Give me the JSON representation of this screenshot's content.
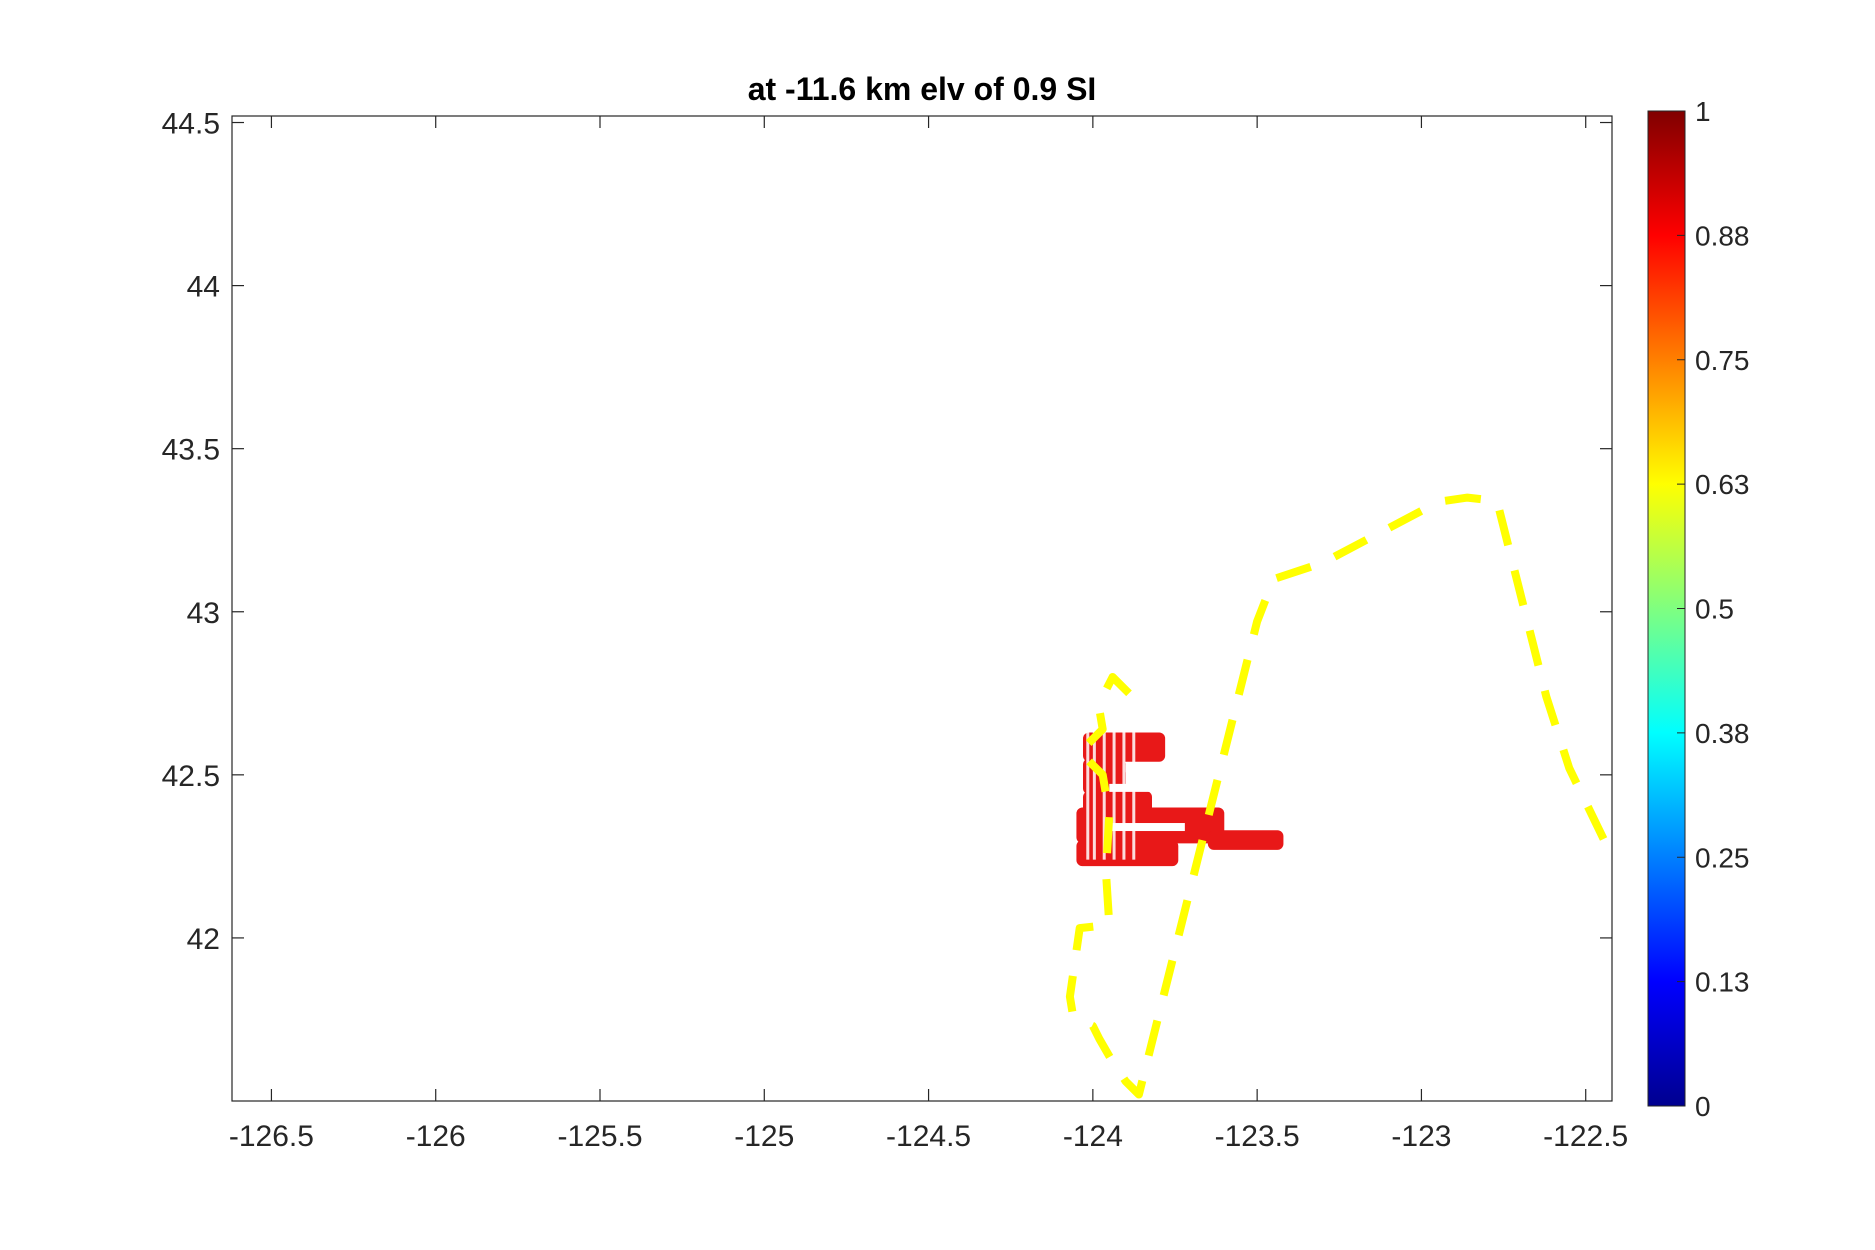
{
  "chart_data": {
    "type": "heatmap",
    "title": "at -11.6 km elv of 0.9 SI",
    "xlabel": "",
    "ylabel": "",
    "xlim": [
      -126.62,
      -122.42
    ],
    "ylim": [
      41.5,
      44.52
    ],
    "x_ticks": [
      -126.5,
      -126,
      -125.5,
      -125,
      -124.5,
      -124,
      -123.5,
      -123,
      -122.5
    ],
    "x_tick_labels": [
      "-126.5",
      "-126",
      "-125.5",
      "-125",
      "-124.5",
      "-124",
      "-123.5",
      "-123",
      "-122.5"
    ],
    "y_ticks": [
      42,
      42.5,
      43,
      43.5,
      44,
      44.5
    ],
    "y_tick_labels": [
      "42",
      "42.5",
      "43",
      "43.5",
      "44",
      "44.5"
    ],
    "grid": false,
    "colormap": "jet",
    "colorbar": {
      "range": [
        0,
        1
      ],
      "ticks": [
        0,
        0.125,
        0.25,
        0.375,
        0.5,
        0.625,
        0.75,
        0.875,
        1
      ],
      "tick_labels": [
        "0",
        "0.13",
        "0.25",
        "0.38",
        "0.5",
        "0.63",
        "0.75",
        "0.88",
        "1"
      ]
    },
    "region_color": "#e81818",
    "region_value": 0.9,
    "region_blocks": [
      {
        "lon": [
          -124.03,
          -123.78
        ],
        "lat": [
          42.54,
          42.63
        ]
      },
      {
        "lon": [
          -124.03,
          -123.9
        ],
        "lat": [
          42.44,
          42.55
        ]
      },
      {
        "lon": [
          -124.03,
          -123.82
        ],
        "lat": [
          42.38,
          42.45
        ]
      },
      {
        "lon": [
          -124.05,
          -123.6
        ],
        "lat": [
          42.29,
          42.4
        ]
      },
      {
        "lon": [
          -124.05,
          -123.74
        ],
        "lat": [
          42.22,
          42.3
        ]
      },
      {
        "lon": [
          -123.65,
          -123.42
        ],
        "lat": [
          42.27,
          42.33
        ]
      }
    ],
    "dashed_outline": {
      "color": "#ffff00",
      "lon": [
        -123.89,
        -123.94,
        -123.96,
        -123.98,
        -123.97,
        -124.04,
        -123.97,
        -123.95,
        -123.96,
        -123.95,
        -124.04,
        -124.07,
        -124.06,
        -124.0,
        -123.98,
        -123.94,
        -123.9,
        -123.86,
        -123.5,
        -123.45,
        -123.3,
        -122.98,
        -122.93,
        -122.86,
        -122.77,
        -122.62,
        -122.55,
        -122.42
      ],
      "lat": [
        42.75,
        42.8,
        42.76,
        42.7,
        42.64,
        42.57,
        42.5,
        42.38,
        42.2,
        42.04,
        42.03,
        41.82,
        41.76,
        41.73,
        41.69,
        41.62,
        41.56,
        41.52,
        42.97,
        43.1,
        43.15,
        43.32,
        43.34,
        43.35,
        43.34,
        42.74,
        42.52,
        42.25
      ]
    }
  }
}
